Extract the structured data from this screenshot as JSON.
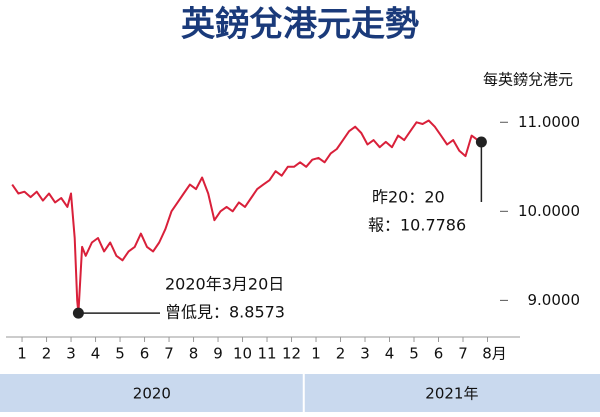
{
  "chart_data": {
    "type": "line",
    "title": "英鎊兌港元走勢",
    "y_axis_label": "每英鎊兌港元",
    "color": "#d9203a",
    "x": [
      0.6,
      0.85,
      1.1,
      1.35,
      1.6,
      1.85,
      2.1,
      2.35,
      2.6,
      2.85,
      3.0,
      3.15,
      3.25,
      3.3,
      3.45,
      3.6,
      3.85,
      4.1,
      4.35,
      4.6,
      4.85,
      5.1,
      5.35,
      5.6,
      5.85,
      6.1,
      6.35,
      6.6,
      6.85,
      7.1,
      7.35,
      7.6,
      7.85,
      8.1,
      8.35,
      8.6,
      8.85,
      9.1,
      9.35,
      9.6,
      9.85,
      10.1,
      10.35,
      10.6,
      10.85,
      11.1,
      11.35,
      11.6,
      11.85,
      12.1,
      12.35,
      12.6,
      12.85,
      13.1,
      13.35,
      13.6,
      13.85,
      14.1,
      14.35,
      14.6,
      14.85,
      15.1,
      15.35,
      15.6,
      15.85,
      16.1,
      16.35,
      16.6,
      16.85,
      17.1,
      17.35,
      17.6,
      17.85,
      18.1,
      18.35,
      18.6,
      18.85,
      19.1,
      19.35,
      19.6,
      19.75
    ],
    "values": [
      10.3,
      10.2,
      10.22,
      10.16,
      10.22,
      10.12,
      10.2,
      10.1,
      10.15,
      10.05,
      10.2,
      9.7,
      9.0,
      8.8573,
      9.6,
      9.5,
      9.65,
      9.7,
      9.55,
      9.65,
      9.5,
      9.45,
      9.55,
      9.6,
      9.75,
      9.6,
      9.55,
      9.65,
      9.8,
      10.0,
      10.1,
      10.2,
      10.3,
      10.25,
      10.38,
      10.2,
      9.9,
      10.0,
      10.05,
      10.0,
      10.1,
      10.05,
      10.15,
      10.25,
      10.3,
      10.35,
      10.45,
      10.4,
      10.5,
      10.5,
      10.55,
      10.5,
      10.58,
      10.6,
      10.55,
      10.65,
      10.7,
      10.8,
      10.9,
      10.95,
      10.88,
      10.75,
      10.8,
      10.72,
      10.78,
      10.72,
      10.85,
      10.8,
      10.9,
      11.0,
      10.98,
      11.02,
      10.95,
      10.85,
      10.75,
      10.8,
      10.68,
      10.62,
      10.85,
      10.8,
      10.7786
    ],
    "xlim": [
      0.1,
      21
    ],
    "xticks": [
      1,
      2,
      3,
      4,
      5,
      6,
      7,
      8,
      9,
      10,
      11,
      12,
      {
        "value": 13,
        "label": "1"
      },
      {
        "value": 14,
        "label": "2"
      },
      {
        "value": 15,
        "label": "3"
      },
      {
        "value": 16,
        "label": "4"
      },
      {
        "value": 17,
        "label": "5"
      },
      {
        "value": 18,
        "label": "6"
      },
      {
        "value": 19,
        "label": "7"
      },
      {
        "value": 20,
        "label": "8月"
      }
    ],
    "ylim": [
      8.6,
      11.25
    ],
    "yticks": [
      {
        "value": 9,
        "label": "9.0000"
      },
      {
        "value": 10,
        "label": "10.0000"
      },
      {
        "value": 11,
        "label": "11.0000"
      }
    ],
    "years": [
      "2020",
      "2021年"
    ],
    "annotations": [
      {
        "text": [
          "2020年3月20日",
          "曾低見：8.8573"
        ],
        "x": 3.3,
        "value": 8.8573
      },
      {
        "text": [
          "昨20：20",
          "報：10.7786"
        ],
        "x": 19.75,
        "value": 10.7786
      }
    ]
  }
}
